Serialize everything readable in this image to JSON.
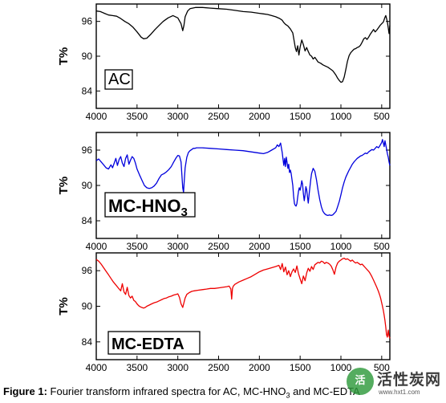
{
  "figure": {
    "caption_label": "Figure 1:",
    "caption_text": " Fourier transform infrared spectra for AC, MC-HNO",
    "caption_sub": "3",
    "caption_tail": " and MC-EDTA"
  },
  "watermark": {
    "logo_text": "活",
    "title": "活性炭网",
    "url": "www.hxt1.com"
  },
  "chart_data": [
    {
      "type": "line",
      "panel_label": "AC",
      "ylabel": "T%",
      "xlim": [
        4000,
        400
      ],
      "ylim": [
        81,
        99
      ],
      "xticks": [
        4000,
        3500,
        3000,
        2500,
        2000,
        1500,
        1000,
        500
      ],
      "yticks": [
        84,
        90,
        96
      ],
      "series": [
        {
          "color": "#000000",
          "x": [
            4000,
            3950,
            3900,
            3850,
            3800,
            3750,
            3700,
            3650,
            3600,
            3550,
            3500,
            3450,
            3420,
            3380,
            3330,
            3280,
            3230,
            3180,
            3120,
            3060,
            3000,
            2960,
            2940,
            2925,
            2910,
            2880,
            2850,
            2820,
            2780,
            2700,
            2600,
            2500,
            2400,
            2300,
            2200,
            2100,
            2000,
            1950,
            1900,
            1850,
            1800,
            1750,
            1720,
            1700,
            1680,
            1650,
            1620,
            1590,
            1575,
            1560,
            1545,
            1530,
            1515,
            1500,
            1480,
            1460,
            1440,
            1420,
            1400,
            1380,
            1360,
            1340,
            1320,
            1300,
            1280,
            1250,
            1220,
            1190,
            1160,
            1130,
            1100,
            1080,
            1060,
            1040,
            1020,
            1000,
            980,
            960,
            940,
            920,
            900,
            880,
            860,
            840,
            820,
            800,
            780,
            760,
            740,
            720,
            700,
            680,
            660,
            640,
            620,
            600,
            580,
            560,
            540,
            520,
            500,
            480,
            470,
            460,
            450,
            440,
            430,
            420,
            410,
            400
          ],
          "y": [
            97.8,
            97.7,
            97.4,
            97.1,
            97.0,
            96.9,
            96.5,
            96.0,
            95.6,
            95.0,
            94.2,
            93.3,
            93.0,
            93.1,
            93.8,
            94.6,
            95.3,
            96.0,
            96.6,
            97.0,
            96.6,
            95.6,
            94.4,
            95.3,
            96.8,
            97.8,
            98.2,
            98.3,
            98.4,
            98.4,
            98.3,
            98.2,
            98.1,
            97.9,
            97.7,
            97.6,
            97.4,
            97.3,
            97.2,
            97.0,
            96.8,
            96.5,
            96.2,
            95.8,
            95.5,
            95.2,
            94.7,
            94.0,
            92.8,
            91.5,
            90.8,
            91.8,
            90.2,
            91.6,
            92.8,
            92.0,
            90.9,
            91.5,
            90.8,
            90.2,
            90.0,
            89.5,
            89.8,
            89.4,
            89.0,
            88.8,
            88.5,
            88.3,
            88.1,
            87.8,
            87.5,
            87.1,
            86.7,
            86.2,
            85.8,
            85.5,
            85.6,
            86.4,
            87.7,
            89.1,
            90.1,
            90.6,
            90.9,
            91.2,
            91.3,
            91.5,
            91.6,
            91.9,
            92.4,
            93.0,
            93.2,
            92.9,
            93.3,
            93.8,
            94.2,
            94.6,
            94.2,
            94.5,
            94.9,
            95.3,
            95.6,
            95.9,
            96.3,
            96.7,
            97.0,
            96.5,
            95.9,
            94.9,
            93.9,
            95.3
          ]
        }
      ]
    },
    {
      "type": "line",
      "panel_label": "MC-HNO",
      "panel_label_sub": "3",
      "ylabel": "T%",
      "xlim": [
        4000,
        400
      ],
      "ylim": [
        81,
        99
      ],
      "xticks": [
        4000,
        3500,
        3000,
        2500,
        2000,
        1500,
        1000,
        500
      ],
      "yticks": [
        84,
        90,
        96
      ],
      "series": [
        {
          "color": "#0000dd",
          "x": [
            4000,
            3970,
            3940,
            3910,
            3880,
            3850,
            3820,
            3800,
            3780,
            3760,
            3740,
            3720,
            3700,
            3680,
            3660,
            3640,
            3620,
            3600,
            3580,
            3560,
            3540,
            3520,
            3500,
            3470,
            3440,
            3410,
            3380,
            3350,
            3320,
            3290,
            3260,
            3230,
            3200,
            3170,
            3140,
            3110,
            3080,
            3050,
            3020,
            3000,
            2980,
            2960,
            2940,
            2930,
            2920,
            2910,
            2890,
            2870,
            2850,
            2830,
            2810,
            2790,
            2770,
            2750,
            2700,
            2600,
            2500,
            2400,
            2300,
            2200,
            2100,
            2000,
            1950,
            1900,
            1850,
            1800,
            1780,
            1760,
            1740,
            1730,
            1720,
            1710,
            1700,
            1690,
            1680,
            1670,
            1660,
            1650,
            1640,
            1630,
            1620,
            1610,
            1600,
            1590,
            1580,
            1570,
            1560,
            1550,
            1540,
            1530,
            1520,
            1510,
            1500,
            1490,
            1480,
            1470,
            1460,
            1450,
            1440,
            1430,
            1420,
            1410,
            1400,
            1390,
            1380,
            1370,
            1360,
            1340,
            1320,
            1300,
            1280,
            1260,
            1240,
            1220,
            1200,
            1180,
            1160,
            1140,
            1120,
            1100,
            1080,
            1060,
            1040,
            1020,
            1000,
            980,
            960,
            940,
            920,
            900,
            880,
            860,
            840,
            820,
            800,
            780,
            760,
            740,
            720,
            700,
            680,
            660,
            640,
            620,
            600,
            580,
            560,
            540,
            520,
            500,
            490,
            480,
            470,
            460,
            450,
            440,
            430,
            420,
            410,
            400
          ],
          "y": [
            94.2,
            94.5,
            94.0,
            93.5,
            93.0,
            92.8,
            93.5,
            93.0,
            93.8,
            94.6,
            93.4,
            94.4,
            94.9,
            93.8,
            93.2,
            94.6,
            95.2,
            93.6,
            94.3,
            94.9,
            94.6,
            93.8,
            92.8,
            91.8,
            90.9,
            90.0,
            89.6,
            89.5,
            89.6,
            89.9,
            90.4,
            91.2,
            91.8,
            92.0,
            92.3,
            92.7,
            93.2,
            94.0,
            94.7,
            95.1,
            95.0,
            94.0,
            89.6,
            88.8,
            91.0,
            93.0,
            94.8,
            95.6,
            95.9,
            96.1,
            96.3,
            96.3,
            96.4,
            96.4,
            96.4,
            96.3,
            96.2,
            96.1,
            96.0,
            95.9,
            95.7,
            95.5,
            95.4,
            95.6,
            96.0,
            96.4,
            96.9,
            96.6,
            97.2,
            96.4,
            95.6,
            94.5,
            93.4,
            94.6,
            93.2,
            94.8,
            93.9,
            92.9,
            93.6,
            92.2,
            92.6,
            92.0,
            91.0,
            90.0,
            88.2,
            86.9,
            86.6,
            86.5,
            86.9,
            88.0,
            89.0,
            89.6,
            89.2,
            89.9,
            90.8,
            90.2,
            88.6,
            87.4,
            88.4,
            89.8,
            89.3,
            88.1,
            87.0,
            88.4,
            89.8,
            91.0,
            92.0,
            92.9,
            92.4,
            91.0,
            89.2,
            87.6,
            86.4,
            85.6,
            85.2,
            85.0,
            84.9,
            85.0,
            84.9,
            85.0,
            85.3,
            85.6,
            86.4,
            87.3,
            88.4,
            89.6,
            90.6,
            91.4,
            92.0,
            92.6,
            93.1,
            93.6,
            94.0,
            94.3,
            94.6,
            94.8,
            95.0,
            95.1,
            95.3,
            95.5,
            95.4,
            95.7,
            95.9,
            96.1,
            96.0,
            96.3,
            96.6,
            96.4,
            96.8,
            97.3,
            97.8,
            97.2,
            96.6,
            97.6,
            96.9,
            96.2,
            95.4,
            94.8,
            94.0,
            93.4
          ]
        }
      ]
    },
    {
      "type": "line",
      "panel_label": "MC-EDTA",
      "ylabel": "T%",
      "xlim": [
        4000,
        400
      ],
      "ylim": [
        81,
        99
      ],
      "xticks": [
        4000,
        3500,
        3000,
        2500,
        2000,
        1500,
        1000,
        500
      ],
      "yticks": [
        84,
        90,
        96
      ],
      "series": [
        {
          "color": "#ee0000",
          "x": [
            4000,
            3970,
            3940,
            3910,
            3880,
            3850,
            3820,
            3790,
            3760,
            3730,
            3700,
            3680,
            3660,
            3640,
            3620,
            3600,
            3580,
            3560,
            3540,
            3520,
            3500,
            3480,
            3460,
            3440,
            3420,
            3400,
            3380,
            3350,
            3320,
            3290,
            3260,
            3230,
            3200,
            3170,
            3140,
            3110,
            3080,
            3050,
            3020,
            3000,
            2980,
            2960,
            2940,
            2925,
            2910,
            2890,
            2860,
            2830,
            2800,
            2750,
            2700,
            2650,
            2600,
            2550,
            2500,
            2450,
            2400,
            2370,
            2350,
            2340,
            2330,
            2320,
            2300,
            2250,
            2200,
            2150,
            2100,
            2050,
            2000,
            1950,
            1900,
            1850,
            1800,
            1760,
            1740,
            1720,
            1700,
            1680,
            1660,
            1640,
            1620,
            1600,
            1580,
            1560,
            1540,
            1520,
            1500,
            1480,
            1460,
            1440,
            1420,
            1400,
            1380,
            1360,
            1340,
            1320,
            1300,
            1280,
            1260,
            1240,
            1220,
            1200,
            1180,
            1160,
            1140,
            1120,
            1100,
            1080,
            1060,
            1040,
            1020,
            1000,
            980,
            960,
            940,
            920,
            900,
            880,
            860,
            840,
            820,
            800,
            780,
            760,
            740,
            720,
            700,
            680,
            660,
            640,
            620,
            600,
            580,
            560,
            540,
            520,
            510,
            500,
            490,
            480,
            470,
            460,
            450,
            440,
            430,
            420,
            410,
            400
          ],
          "y": [
            97.9,
            97.6,
            97.1,
            96.5,
            95.9,
            95.3,
            94.7,
            94.1,
            93.6,
            93.1,
            92.6,
            93.8,
            92.4,
            92.0,
            93.2,
            91.8,
            91.4,
            91.7,
            91.0,
            90.8,
            90.4,
            90.1,
            89.9,
            89.8,
            89.7,
            89.8,
            90.0,
            90.2,
            90.4,
            90.6,
            90.7,
            90.9,
            91.1,
            91.3,
            91.4,
            91.6,
            91.7,
            91.9,
            92.0,
            92.1,
            91.5,
            90.4,
            89.8,
            90.6,
            91.4,
            92.0,
            92.3,
            92.5,
            92.6,
            92.7,
            92.8,
            92.9,
            93.0,
            93.0,
            93.1,
            93.2,
            93.3,
            93.4,
            92.9,
            91.2,
            93.0,
            93.4,
            93.7,
            94.1,
            94.4,
            94.7,
            95.0,
            95.4,
            95.8,
            96.1,
            96.3,
            96.5,
            96.7,
            96.9,
            96.2,
            97.2,
            95.8,
            96.6,
            95.3,
            96.0,
            95.0,
            95.8,
            96.3,
            95.7,
            96.8,
            95.5,
            94.6,
            93.8,
            95.1,
            94.3,
            95.6,
            96.4,
            95.9,
            96.7,
            96.2,
            97.0,
            97.2,
            97.4,
            97.3,
            97.6,
            97.5,
            97.2,
            97.4,
            97.3,
            97.1,
            96.8,
            96.2,
            95.4,
            96.6,
            97.3,
            97.6,
            97.8,
            98.0,
            98.1,
            97.9,
            98.0,
            97.8,
            97.6,
            97.8,
            97.5,
            97.3,
            97.4,
            97.2,
            97.0,
            97.1,
            96.8,
            96.5,
            96.2,
            95.9,
            95.5,
            95.0,
            94.4,
            93.8,
            93.2,
            92.5,
            91.7,
            91.2,
            90.6,
            90.0,
            89.3,
            88.5,
            87.6,
            86.5,
            85.2,
            84.8,
            86.0,
            85.0,
            84.6
          ]
        }
      ]
    }
  ]
}
